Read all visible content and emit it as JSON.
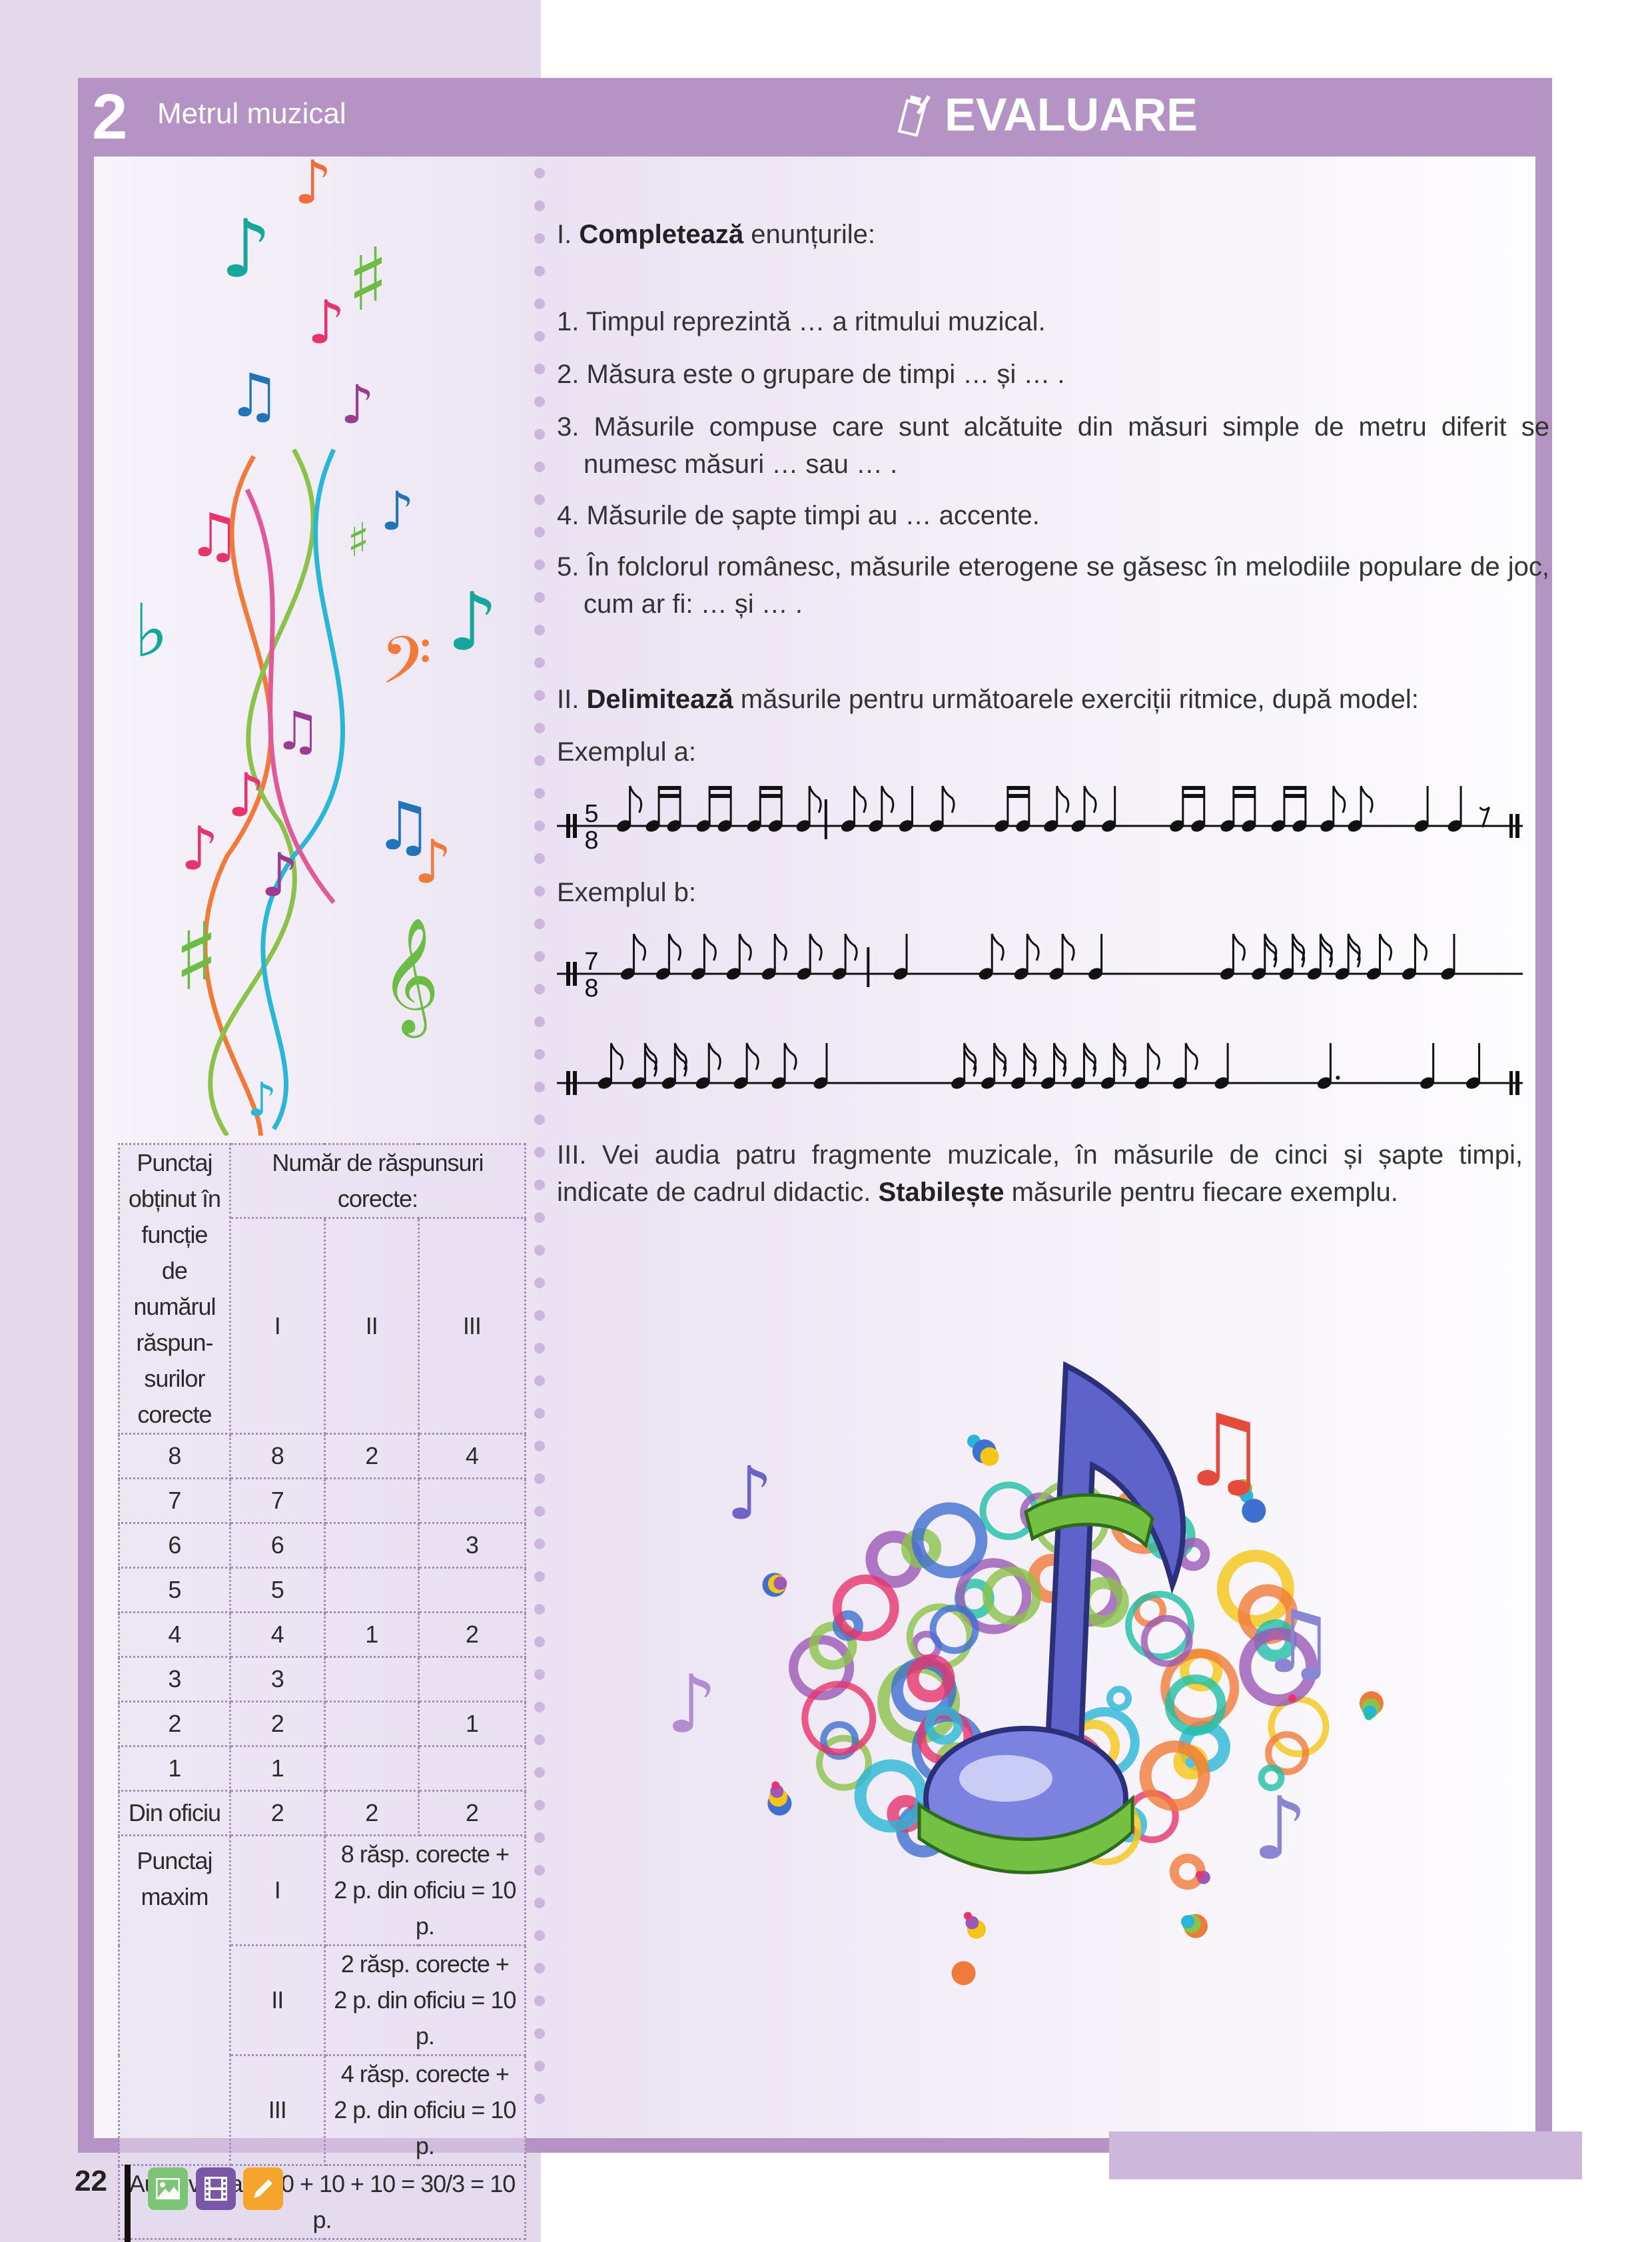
{
  "header": {
    "chapter_number": "2",
    "chapter_title": "Metrul muzical",
    "section_title": "EVALUARE",
    "section_icon": "clipboard-pencil-icon"
  },
  "colors": {
    "accent": "#b594c5",
    "panel": "#e3d9eb",
    "icon_image": "#7dc576",
    "icon_video": "#7b57a8",
    "icon_edit": "#f5a52b"
  },
  "exercise1": {
    "prefix": "I.",
    "verb": "Completează",
    "rest": "enunțurile:",
    "items": [
      "1. Timpul reprezintă … a ritmului muzical.",
      "2. Măsura este o grupare de timpi … și … .",
      "3. Măsurile compuse care sunt alcătuite din măsuri simple de metru diferit se numesc măsuri … sau … .",
      "4. Măsurile de șapte timpi au … accente.",
      "5. În folclorul românesc, măsurile eterogene se găsesc în melodiile populare de joc, cum ar fi: … și … ."
    ]
  },
  "exercise2": {
    "prefix": "II.",
    "verb": "Delimitează",
    "rest": "măsurile pentru următoarele exerciții ritmice, după model:",
    "example_a": {
      "label": "Exemplul a:",
      "time_sig": [
        "5",
        "8"
      ],
      "rhythm": [
        "8",
        "16p",
        "16p",
        "16p",
        "8",
        "|",
        "8",
        "8",
        "4",
        "8",
        "_",
        "16p",
        "8",
        "8",
        "4",
        "_",
        "16p",
        "16p",
        "16p",
        "8",
        "8",
        "_",
        "4",
        "4",
        "r8"
      ],
      "final_bar": true
    },
    "example_b": {
      "label": "Exemplul b:",
      "time_sig": [
        "7",
        "8"
      ],
      "rhythm": [
        "8",
        "8",
        "8",
        "8",
        "8",
        "8",
        "8",
        "|",
        "4",
        "_",
        "8",
        "8",
        "8",
        "4",
        "_",
        "_",
        "8",
        "16",
        "16",
        "16",
        "16",
        "8",
        "8",
        "4"
      ],
      "final_bar": false
    },
    "example_b2": {
      "rhythm": [
        "8",
        "16",
        "16",
        "8",
        "8",
        "8",
        "4",
        "_",
        "_",
        "16",
        "16",
        "16",
        "16",
        "16",
        "16",
        "8",
        "8",
        "4",
        "_",
        "4.",
        "_",
        "4",
        "4"
      ],
      "final_bar": true
    }
  },
  "exercise3": {
    "prefix": "III.",
    "text1": "Vei audia patru fragmente muzicale, în măsurile de cinci și șapte timpi, indicate de cadrul didactic.",
    "verb": "Stabilește",
    "text2": "măsurile pentru fiecare exemplu."
  },
  "score_table": {
    "header_left": "Punctaj obținut în funcție de numărul răspun-surilor corecte",
    "header_right": "Număr de răspunsuri corecte:",
    "columns": [
      "I",
      "II",
      "III"
    ],
    "rows": [
      [
        "8",
        "8",
        "2",
        "4"
      ],
      [
        "7",
        "7",
        "",
        ""
      ],
      [
        "6",
        "6",
        "",
        "3"
      ],
      [
        "5",
        "5",
        "",
        ""
      ],
      [
        "4",
        "4",
        "1",
        "2"
      ],
      [
        "3",
        "3",
        "",
        ""
      ],
      [
        "2",
        "2",
        "",
        "1"
      ],
      [
        "1",
        "1",
        "",
        ""
      ],
      [
        "Din oficiu",
        "2",
        "2",
        "2"
      ]
    ],
    "max_label": "Punctaj maxim",
    "max_rows": [
      [
        "I",
        "8 răsp. corecte + 2 p. din oficiu = 10 p."
      ],
      [
        "II",
        "2 răsp. corecte + 2 p. din oficiu = 10 p."
      ],
      [
        "III",
        "4 răsp. corecte + 2 p. din oficiu = 10 p."
      ]
    ],
    "self_eval": "Autoevaluare 10 + 10 + 10 = 30/3 = 10 p."
  },
  "footer": {
    "page_number": "22",
    "icons": [
      "image-icon",
      "film-icon",
      "pencil-icon"
    ]
  }
}
